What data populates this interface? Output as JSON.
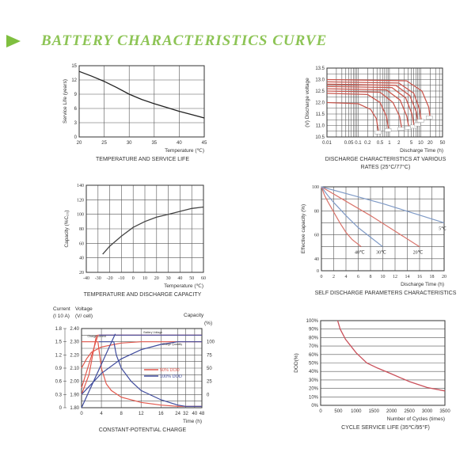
{
  "header": {
    "title": "BATTERY  CHARACTERISTICS CURVE",
    "accent": "#8dc455"
  },
  "chart_data": [
    {
      "type": "line",
      "title": "TEMPERATURE AND SERVICE LIFE",
      "xlabel": "Temperature (℃)",
      "ylabel": "Service Life (years)",
      "xlim": [
        20,
        45
      ],
      "ylim": [
        0,
        15
      ],
      "xticks": [
        20,
        25,
        30,
        35,
        40,
        45
      ],
      "yticks": [
        0,
        3,
        6,
        9,
        12,
        15
      ],
      "grid": true,
      "series": [
        {
          "name": "service life",
          "color": "#222222",
          "points": [
            [
              20,
              13.8
            ],
            [
              22.5,
              12.8
            ],
            [
              25,
              11.7
            ],
            [
              27.5,
              10.4
            ],
            [
              30,
              9.0
            ],
            [
              32.5,
              7.9
            ],
            [
              35,
              7.0
            ],
            [
              37.5,
              6.2
            ],
            [
              40,
              5.4
            ],
            [
              42.5,
              4.7
            ],
            [
              45,
              4.0
            ]
          ]
        }
      ]
    },
    {
      "type": "line",
      "title": "DISCHARGE CHARACTERISTICS AT VARIOUS",
      "title2": "RATES (25°C/77°C)",
      "xlabel": "Discharge Time (h)",
      "ylabel": "(V)  Discharge voltage",
      "xscale": "log",
      "xlim": [
        0.01,
        50
      ],
      "ylim": [
        10.5,
        13.5
      ],
      "xticks": [
        0.01,
        0.05,
        0.1,
        0.2,
        0.5,
        1,
        2,
        5,
        10,
        20,
        50
      ],
      "yticks": [
        10.5,
        11.0,
        11.5,
        12.0,
        12.5,
        13.0,
        13.5
      ],
      "grid": true,
      "series": [
        {
          "name": "rate-1",
          "color": "#c9584f",
          "points": [
            [
              0.01,
              12.0
            ],
            [
              0.1,
              11.95
            ],
            [
              0.25,
              11.7
            ],
            [
              0.38,
              11.3
            ],
            [
              0.45,
              10.7
            ]
          ]
        },
        {
          "name": "rate-2",
          "color": "#c9584f",
          "points": [
            [
              0.01,
              12.4
            ],
            [
              0.2,
              12.35
            ],
            [
              0.5,
              12.0
            ],
            [
              0.8,
              11.4
            ],
            [
              0.95,
              10.8
            ]
          ]
        },
        {
          "name": "rate-3",
          "color": "#c9584f",
          "points": [
            [
              0.01,
              12.5
            ],
            [
              0.5,
              12.45
            ],
            [
              1.3,
              12.0
            ],
            [
              2.1,
              11.4
            ],
            [
              2.5,
              10.85
            ]
          ]
        },
        {
          "name": "rate-4",
          "color": "#c9584f",
          "points": [
            [
              0.01,
              12.6
            ],
            [
              0.8,
              12.55
            ],
            [
              2.2,
              12.1
            ],
            [
              3.6,
              11.4
            ],
            [
              4.2,
              10.9
            ]
          ]
        },
        {
          "name": "rate-5",
          "color": "#c9584f",
          "points": [
            [
              0.01,
              12.7
            ],
            [
              1.2,
              12.65
            ],
            [
              3.3,
              12.2
            ],
            [
              5.3,
              11.5
            ],
            [
              6.2,
              10.95
            ]
          ]
        },
        {
          "name": "rate-6",
          "color": "#c9584f",
          "points": [
            [
              0.01,
              12.8
            ],
            [
              1.6,
              12.75
            ],
            [
              4.5,
              12.3
            ],
            [
              7.2,
              11.6
            ],
            [
              8.3,
              11.05
            ]
          ]
        },
        {
          "name": "rate-7",
          "color": "#c9584f",
          "points": [
            [
              0.01,
              12.9
            ],
            [
              2.0,
              12.85
            ],
            [
              6.0,
              12.4
            ],
            [
              9.2,
              11.7
            ],
            [
              10.5,
              11.2
            ]
          ]
        },
        {
          "name": "rate-8",
          "color": "#c9584f",
          "points": [
            [
              0.01,
              13.0
            ],
            [
              3.5,
              12.95
            ],
            [
              11,
              12.5
            ],
            [
              18,
              11.8
            ],
            [
              20,
              11.35
            ]
          ]
        }
      ]
    },
    {
      "type": "line",
      "title": "TEMPERATURE AND DISCHARGE CAPACITY",
      "xlabel": "Temperature (℃)",
      "ylabel": "Capacity (%C₂₀)",
      "xlim": [
        -40,
        60
      ],
      "ylim": [
        20,
        140
      ],
      "xticks": [
        -40,
        -30,
        -20,
        -10,
        0,
        10,
        20,
        30,
        40,
        50,
        60
      ],
      "yticks": [
        20,
        40,
        60,
        80,
        100,
        120,
        140
      ],
      "grid": true,
      "series": [
        {
          "name": "capacity",
          "color": "#444444",
          "points": [
            [
              -26,
              45
            ],
            [
              -20,
              56
            ],
            [
              -10,
              70
            ],
            [
              0,
              82
            ],
            [
              10,
              90
            ],
            [
              20,
              96
            ],
            [
              30,
              100
            ],
            [
              40,
              104
            ],
            [
              50,
              108
            ],
            [
              60,
              110
            ]
          ]
        }
      ]
    },
    {
      "type": "line",
      "title": "SELF DISCHARGE PARAMETERS CHARACTERISTICS",
      "xlabel": "Discharge Time (h)",
      "ylabel": "Effective capacity (%)",
      "xlim": [
        0,
        20
      ],
      "ylim": [
        30,
        100
      ],
      "xticks": [
        0,
        2,
        4,
        6,
        8,
        10,
        12,
        14,
        16,
        18,
        20
      ],
      "yticks": [
        40,
        60,
        80,
        100
      ],
      "ybottom_label": "0",
      "grid": true,
      "series": [
        {
          "name": "40℃",
          "color": "#d9736a",
          "points": [
            [
              0,
              100
            ],
            [
              0.5,
              93
            ],
            [
              1,
              88
            ],
            [
              2,
              79
            ],
            [
              3,
              70
            ],
            [
              4,
              62
            ],
            [
              5,
              56
            ],
            [
              6.5,
              50
            ]
          ],
          "label_at": [
            6.5,
            50
          ]
        },
        {
          "name": "30℃",
          "color": "#7f9ac6",
          "points": [
            [
              0,
              100
            ],
            [
              1,
              93
            ],
            [
              2,
              87
            ],
            [
              4,
              76
            ],
            [
              6,
              66
            ],
            [
              8,
              58
            ],
            [
              10,
              50
            ]
          ],
          "label_at": [
            10,
            50
          ]
        },
        {
          "name": "20℃",
          "color": "#d9736a",
          "points": [
            [
              0,
              100
            ],
            [
              4,
              88
            ],
            [
              8,
              76
            ],
            [
              12,
              63
            ],
            [
              16,
              50
            ]
          ],
          "label_at": [
            16,
            50
          ]
        },
        {
          "name": "5℃",
          "color": "#7f9ac6",
          "points": [
            [
              0,
              100
            ],
            [
              5,
              93
            ],
            [
              10,
              86
            ],
            [
              15,
              78
            ],
            [
              20,
              70
            ]
          ],
          "label_at": [
            20,
            70
          ]
        }
      ]
    },
    {
      "type": "line",
      "title": "CONSTANT-POTENTIAL CHARGE",
      "xlabel": "Time (h)",
      "ylabel": "Voltage (V/ cell)",
      "ylabel_line1": "Voltage",
      "ylabel_line2": "(V/ cell)",
      "current_label_line1": "Current",
      "current_label_line2": "(I 10 A)",
      "capacity_label": "Capacity",
      "capacity_unit": "(%)",
      "xscale": "piecewise",
      "xticks": [
        0,
        4,
        8,
        12,
        16,
        24,
        32,
        40,
        48
      ],
      "ylim": [
        1.8,
        2.4
      ],
      "yticks": [
        1.8,
        1.9,
        2.0,
        2.1,
        2.2,
        2.3,
        2.4
      ],
      "current_ticks": [
        {
          "v": 1.8,
          "label": "0"
        },
        {
          "v": 1.9,
          "label": "0.3"
        },
        {
          "v": 2.0,
          "label": "0.6"
        },
        {
          "v": 2.1,
          "label": "0.9"
        },
        {
          "v": 2.2,
          "label": "1.2"
        },
        {
          "v": 2.3,
          "label": "1.5"
        },
        {
          "v": 2.4,
          "label": "1.8"
        }
      ],
      "capacity_ticks": [
        {
          "v": 1.9,
          "label": "0"
        },
        {
          "v": 2.0,
          "label": "25"
        },
        {
          "v": 2.1,
          "label": "50"
        },
        {
          "v": 2.2,
          "label": "75"
        },
        {
          "v": 2.3,
          "label": "100"
        }
      ],
      "annotations": [
        {
          "text": "Charge current",
          "at": [
            1.2,
            2.335
          ]
        },
        {
          "text": "Battery Voltage",
          "at": [
            12.5,
            2.365
          ]
        },
        {
          "text": "Charge Quantity",
          "at": [
            16.5,
            2.275
          ]
        }
      ],
      "legend": [
        {
          "name": "50% DOD",
          "color": "#e2574c"
        },
        {
          "name": "100% DOD",
          "color": "#3e4a9c"
        }
      ],
      "grid": true,
      "series": [
        {
          "name": "50% DOD voltage",
          "color": "#e2574c",
          "points": [
            [
              0,
              1.95
            ],
            [
              3.3,
              2.35
            ],
            [
              48,
              2.35
            ]
          ]
        },
        {
          "name": "50% DOD voltage-2",
          "color": "#e2574c",
          "points": [
            [
              0,
              1.9
            ],
            [
              1.5,
              2.05
            ],
            [
              3.0,
              2.35
            ]
          ]
        },
        {
          "name": "50% DOD current",
          "color": "#e2574c",
          "points": [
            [
              0,
              2.3
            ],
            [
              3.3,
              2.3
            ],
            [
              4,
              2.1
            ],
            [
              5,
              1.98
            ],
            [
              6,
              1.93
            ],
            [
              8,
              1.88
            ],
            [
              12,
              1.84
            ],
            [
              16,
              1.82
            ],
            [
              24,
              1.81
            ],
            [
              48,
              1.81
            ]
          ]
        },
        {
          "name": "50% DOD capacity",
          "color": "#e2574c",
          "points": [
            [
              0,
              2.1
            ],
            [
              1,
              2.17
            ],
            [
              2,
              2.22
            ],
            [
              4,
              2.26
            ],
            [
              8,
              2.29
            ],
            [
              12,
              2.3
            ],
            [
              48,
              2.3
            ]
          ]
        },
        {
          "name": "100% DOD voltage",
          "color": "#3e4a9c",
          "points": [
            [
              0,
              1.8
            ],
            [
              6.8,
              2.36
            ]
          ]
        },
        {
          "name": "100% DOD voltage flat",
          "color": "#3e4a9c",
          "points": [
            [
              3.5,
              2.35
            ],
            [
              48,
              2.35
            ]
          ]
        },
        {
          "name": "100% DOD current",
          "color": "#3e4a9c",
          "points": [
            [
              3.5,
              2.3
            ],
            [
              6.5,
              2.3
            ],
            [
              7,
              2.2
            ],
            [
              8,
              2.1
            ],
            [
              10,
              2.0
            ],
            [
              12,
              1.93
            ],
            [
              16,
              1.86
            ],
            [
              24,
              1.82
            ],
            [
              32,
              1.81
            ],
            [
              48,
              1.81
            ]
          ]
        },
        {
          "name": "100% DOD capacity",
          "color": "#3e4a9c",
          "points": [
            [
              0,
              1.9
            ],
            [
              4,
              2.06
            ],
            [
              8,
              2.17
            ],
            [
              12,
              2.24
            ],
            [
              16,
              2.28
            ],
            [
              24,
              2.3
            ],
            [
              48,
              2.3
            ]
          ]
        }
      ]
    },
    {
      "type": "line",
      "title": "CYCLE SERVICE LIFE (35℃/95°F)",
      "xlabel": "Number of Cycles (times)",
      "ylabel": "DOD(%)",
      "xlim": [
        0,
        3500
      ],
      "ylim": [
        0,
        100
      ],
      "xticks": [
        0,
        500,
        1000,
        1500,
        2000,
        2500,
        3000,
        3500
      ],
      "yticks": [
        0,
        10,
        20,
        30,
        40,
        50,
        60,
        70,
        80,
        90,
        100
      ],
      "ytick_suffix": "%",
      "grid": "horizontal",
      "series": [
        {
          "name": "DOD vs cycles",
          "color": "#c9505a",
          "points": [
            [
              480,
              100
            ],
            [
              550,
              90
            ],
            [
              700,
              78
            ],
            [
              1000,
              62
            ],
            [
              1300,
              50
            ],
            [
              1600,
              44
            ],
            [
              2000,
              37
            ],
            [
              2500,
              28
            ],
            [
              3000,
              21
            ],
            [
              3500,
              17
            ]
          ]
        }
      ]
    }
  ]
}
